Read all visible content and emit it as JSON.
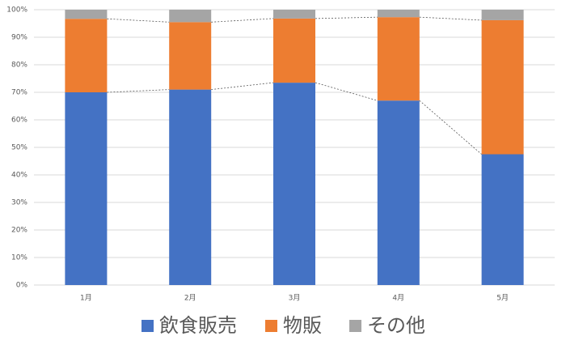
{
  "chart_data": {
    "type": "stacked_bar",
    "categories": [
      "1月",
      "2月",
      "3月",
      "4月",
      "5月"
    ],
    "series": [
      {
        "name": "飲食販売",
        "color": "#4472c4",
        "values": [
          70,
          71,
          73.5,
          67,
          47.5
        ]
      },
      {
        "name": "物販",
        "color": "#ed7d31",
        "values": [
          26.7,
          24.5,
          23.3,
          30.3,
          48.7
        ]
      },
      {
        "name": "その他",
        "color": "#a5a5a5",
        "values": [
          3.3,
          4.5,
          3.2,
          2.7,
          3.8
        ]
      }
    ],
    "ylim": [
      0,
      100
    ],
    "yticks": [
      {
        "value": 0,
        "label": "0%"
      },
      {
        "value": 10,
        "label": "10%"
      },
      {
        "value": 20,
        "label": "20%"
      },
      {
        "value": 30,
        "label": "30%"
      },
      {
        "value": 40,
        "label": "40%"
      },
      {
        "value": 50,
        "label": "50%"
      },
      {
        "value": 60,
        "label": "60%"
      },
      {
        "value": 70,
        "label": "70%"
      },
      {
        "value": 80,
        "label": "80%"
      },
      {
        "value": 90,
        "label": "90%"
      },
      {
        "value": 100,
        "label": "100%"
      }
    ],
    "grid": true,
    "legend": "bottom"
  }
}
